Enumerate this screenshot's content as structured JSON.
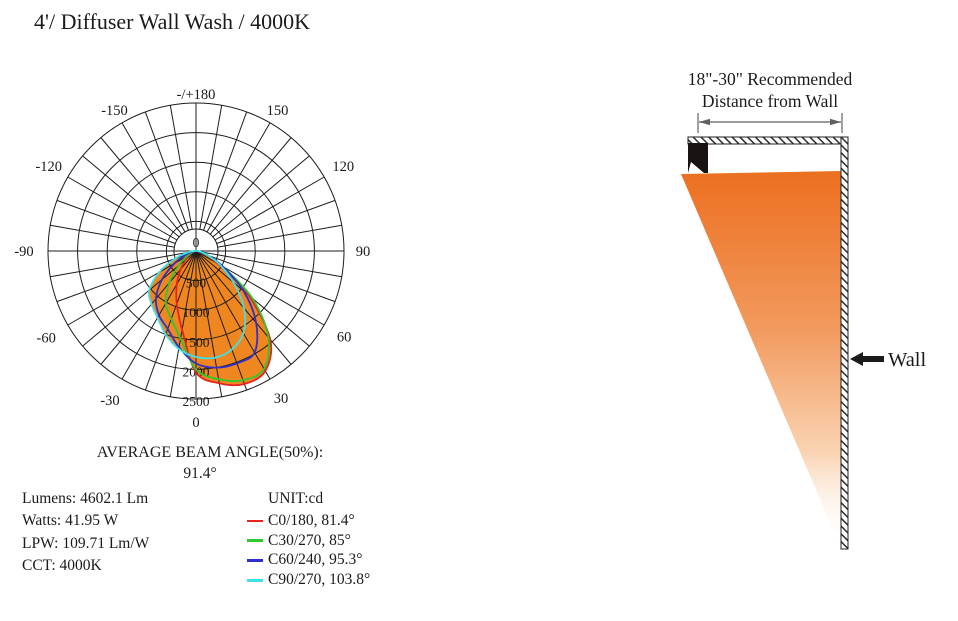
{
  "title": "4'/ Diffuser Wall Wash / 4000K",
  "chart_data": {
    "type": "polar",
    "unit": "cd",
    "fill_color": "#F08620",
    "grid_color": "#1d1d1d",
    "ring_max": 2500,
    "ring_values": [
      500,
      1000,
      1500,
      2000,
      2500
    ],
    "center_label": "0",
    "angle_ticks": [
      {
        "angle": 180,
        "label": "-/+180"
      },
      {
        "angle": -150,
        "label": "-150"
      },
      {
        "angle": 150,
        "label": "150"
      },
      {
        "angle": -120,
        "label": "-120"
      },
      {
        "angle": 120,
        "label": "120"
      },
      {
        "angle": -90,
        "label": "-90"
      },
      {
        "angle": 90,
        "label": "90"
      },
      {
        "angle": -60,
        "label": "-60"
      },
      {
        "angle": 60,
        "label": "60"
      },
      {
        "angle": -30,
        "label": "-30"
      },
      {
        "angle": 30,
        "label": "30"
      },
      {
        "angle": 0,
        "label": "0"
      }
    ],
    "gamma_deg": [
      -90,
      -80,
      -70,
      -60,
      -50,
      -40,
      -30,
      -20,
      -10,
      0,
      10,
      20,
      30,
      40,
      50,
      60,
      70,
      80,
      90
    ],
    "series": [
      {
        "name": "C0/180",
        "beam_angle": "81.4°",
        "color": "#E62420",
        "values": [
          5,
          25,
          60,
          120,
          220,
          400,
          650,
          950,
          1350,
          2050,
          2270,
          2390,
          2340,
          1950,
          1150,
          420,
          140,
          40,
          5
        ]
      },
      {
        "name": "C30/270",
        "beam_angle": "85°",
        "color": "#2FC82F",
        "values": [
          5,
          30,
          80,
          180,
          380,
          700,
          1020,
          1220,
          1500,
          2000,
          2200,
          2320,
          2300,
          1900,
          1250,
          520,
          170,
          50,
          10
        ]
      },
      {
        "name": "C60/240",
        "beam_angle": "95.3°",
        "color": "#3030C8",
        "values": [
          10,
          60,
          180,
          420,
          750,
          1050,
          1250,
          1400,
          1650,
          1900,
          2000,
          2020,
          1980,
          1580,
          1050,
          520,
          220,
          70,
          15
        ]
      },
      {
        "name": "C90/270",
        "beam_angle": "103.8°",
        "color": "#3FE0E8",
        "values": [
          30,
          140,
          380,
          720,
          1030,
          1170,
          1300,
          1500,
          1680,
          1790,
          1830,
          1770,
          1600,
          1260,
          830,
          470,
          220,
          90,
          25
        ]
      }
    ],
    "average_beam_angle_label": "AVERAGE BEAM ANGLE(50%):",
    "average_beam_angle_value": "91.4°"
  },
  "photometrics": {
    "lumens": "Lumens: 4602.1 Lm",
    "watts": "Watts: 41.95 W",
    "lpw": "LPW: 109.71 Lm/W",
    "cct": "CCT: 4000K"
  },
  "legend": {
    "unit_label": "UNIT:cd",
    "items": [
      {
        "label": "C0/180, 81.4°"
      },
      {
        "label": "C30/270, 85°"
      },
      {
        "label": "C60/240, 95.3°"
      },
      {
        "label": "C90/270, 103.8°"
      }
    ]
  },
  "wall_diagram": {
    "heading_line1": "18\"-30\" Recommended",
    "heading_line2": "Distance from Wall",
    "wall_label": "Wall",
    "beam_color_top": "#EC6F20",
    "beam_color_mid": "#F29A5E",
    "beam_color_soft": "#FAD4B4",
    "beam_color_bottom": "#FFFFFF"
  }
}
